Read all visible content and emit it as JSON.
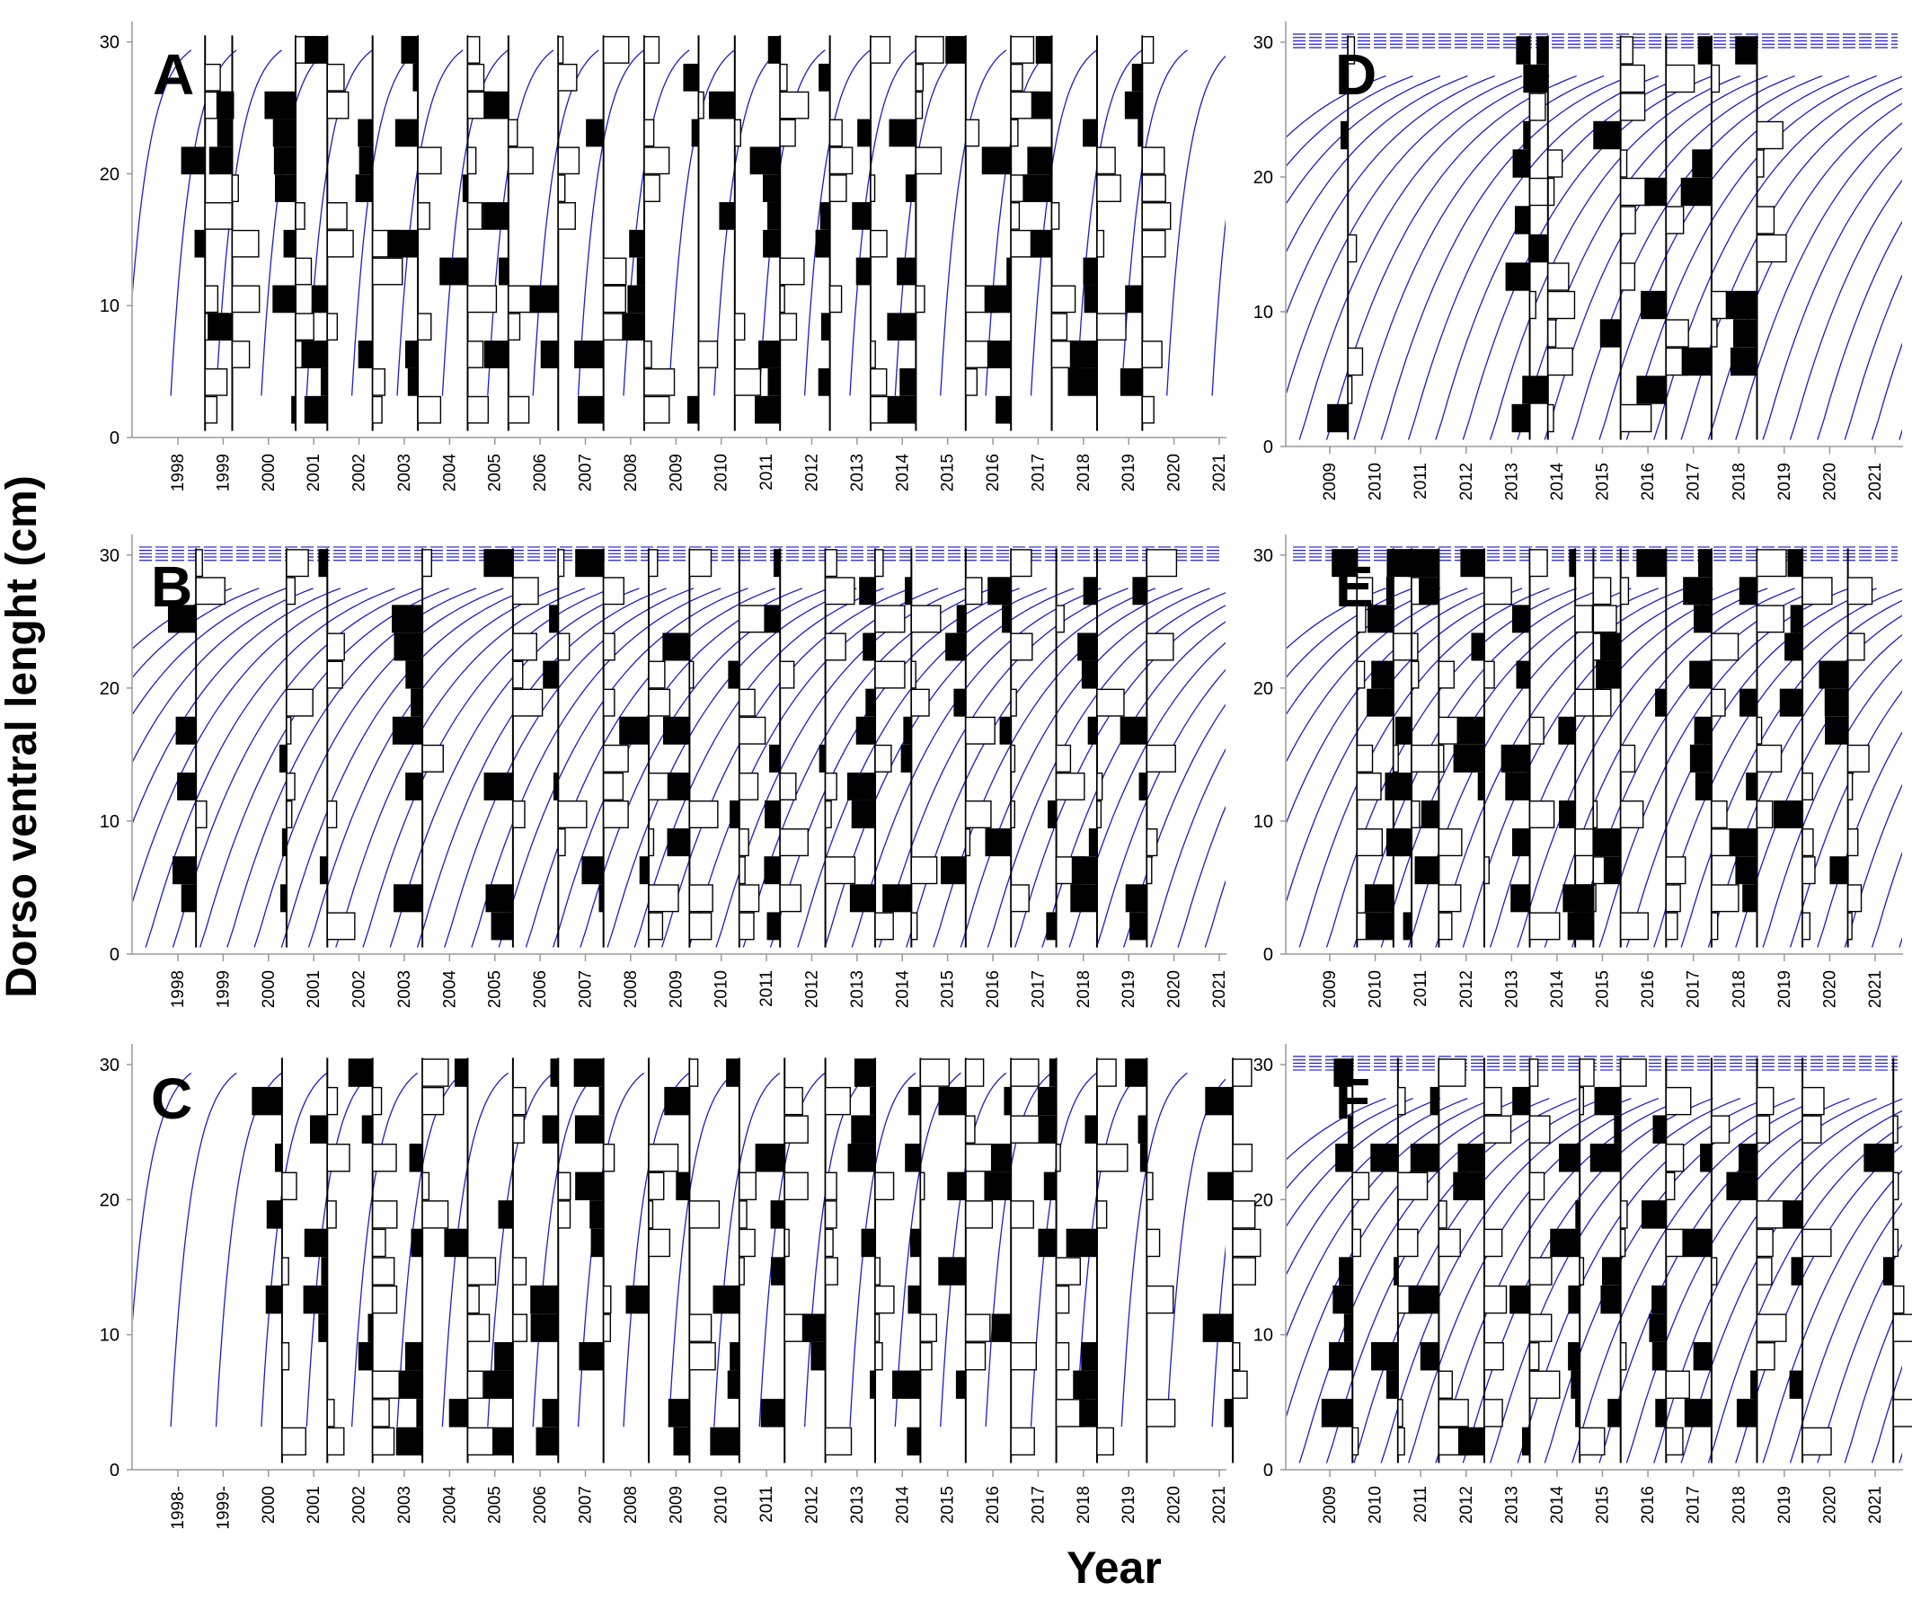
{
  "figure": {
    "ylabel": "Dorso ventral lenght (cm)",
    "xlabel": "Year"
  },
  "colors": {
    "growth_curve": "#1c1ccc",
    "histogram_positive": "#000000",
    "histogram_negative": "#ffffff",
    "axis": "#000000"
  },
  "chart_data": [
    {
      "panel": "A",
      "type": "bar",
      "curve_style": "steep",
      "x_ticks": [
        "1998",
        "1999",
        "2000",
        "2001",
        "2002",
        "2003",
        "2004",
        "2005",
        "2006",
        "2007",
        "2008",
        "2009",
        "2010",
        "2011",
        "2012",
        "2013",
        "2014",
        "2015",
        "2016",
        "2017",
        "2018",
        "2019",
        "2020",
        "2021"
      ],
      "y_ticks": [
        "0",
        "10",
        "20",
        "30"
      ],
      "ylim": [
        0,
        31
      ],
      "sample_years": [
        1998.6,
        1999.2,
        2000.6,
        2001.3,
        2002.3,
        2003.3,
        2004.4,
        2005.3,
        2006.4,
        2007.4,
        2008.3,
        2009.5,
        2010.3,
        2011.3,
        2012.4,
        2013.3,
        2014.3,
        2015.4,
        2016.4,
        2017.3,
        2018.3,
        2019.3
      ]
    },
    {
      "panel": "B",
      "type": "bar",
      "curve_style": "gradual",
      "x_ticks": [
        "1998",
        "1999",
        "2000",
        "2001",
        "2002",
        "2003",
        "2004",
        "2005",
        "2006",
        "2007",
        "2008",
        "2009",
        "2010",
        "2011",
        "2012",
        "2013",
        "2014",
        "2015",
        "2016",
        "2017",
        "2018",
        "2019",
        "2020",
        "2021"
      ],
      "y_ticks": [
        "0",
        "10",
        "20",
        "30"
      ],
      "ylim": [
        0,
        31
      ],
      "sample_years": [
        1998.4,
        2000.4,
        2001.3,
        2003.4,
        2005.4,
        2006.4,
        2007.4,
        2008.4,
        2009.3,
        2010.4,
        2011.3,
        2012.3,
        2013.4,
        2014.2,
        2015.4,
        2016.4,
        2017.4,
        2018.3,
        2019.4
      ]
    },
    {
      "panel": "C",
      "type": "bar",
      "curve_style": "steep",
      "x_ticks": [
        "1998-",
        "1999-",
        "2000",
        "2001",
        "2002",
        "2003",
        "2004",
        "2005",
        "2006",
        "2007",
        "2008",
        "2009",
        "2010",
        "2011",
        "2012",
        "2013",
        "2014",
        "2015",
        "2016",
        "2017",
        "2018",
        "2019",
        "2020",
        "2021"
      ],
      "y_ticks": [
        "0",
        "10",
        "20",
        "30"
      ],
      "ylim": [
        0,
        31
      ],
      "sample_years": [
        2000.3,
        2001.3,
        2002.3,
        2003.4,
        2004.4,
        2005.4,
        2006.4,
        2007.4,
        2008.4,
        2009.3,
        2010.4,
        2011.4,
        2012.3,
        2013.4,
        2014.4,
        2015.4,
        2016.4,
        2017.4,
        2018.3,
        2019.4,
        2021.3
      ]
    },
    {
      "panel": "D",
      "type": "bar",
      "curve_style": "gradual",
      "x_ticks": [
        "2009",
        "2010",
        "2011",
        "2012",
        "2013",
        "2014",
        "2015",
        "2016",
        "2017",
        "2018",
        "2019",
        "2020",
        "2021"
      ],
      "y_ticks": [
        "0",
        "10",
        "20",
        "30"
      ],
      "ylim": [
        0,
        31
      ],
      "sample_years": [
        2009.4,
        2013.4,
        2013.8,
        2015.4,
        2016.4,
        2017.4,
        2018.4
      ]
    },
    {
      "panel": "E",
      "type": "bar",
      "curve_style": "gradual",
      "x_ticks": [
        "2009",
        "2010",
        "2011",
        "2012",
        "2013",
        "2014",
        "2015",
        "2016",
        "2017",
        "2018",
        "2019",
        "2020",
        "2021"
      ],
      "y_ticks": [
        "0",
        "10",
        "20",
        "30"
      ],
      "ylim": [
        0,
        31
      ],
      "sample_years": [
        2009.6,
        2010.4,
        2010.8,
        2011.4,
        2012.4,
        2013.4,
        2014.4,
        2014.8,
        2015.4,
        2016.4,
        2017.4,
        2018.4,
        2019.4,
        2020.4
      ]
    },
    {
      "panel": "F",
      "type": "bar",
      "curve_style": "gradual",
      "x_ticks": [
        "2009",
        "2010",
        "2011",
        "2012",
        "2013",
        "2014",
        "2015",
        "2016",
        "2017",
        "2018",
        "2019",
        "2020",
        "2021"
      ],
      "y_ticks": [
        "0",
        "10",
        "20",
        "30"
      ],
      "ylim": [
        0,
        31
      ],
      "sample_years": [
        2009.5,
        2010.5,
        2011.4,
        2012.4,
        2013.4,
        2014.5,
        2015.4,
        2016.4,
        2017.4,
        2018.4,
        2019.4,
        2021.4
      ]
    }
  ]
}
